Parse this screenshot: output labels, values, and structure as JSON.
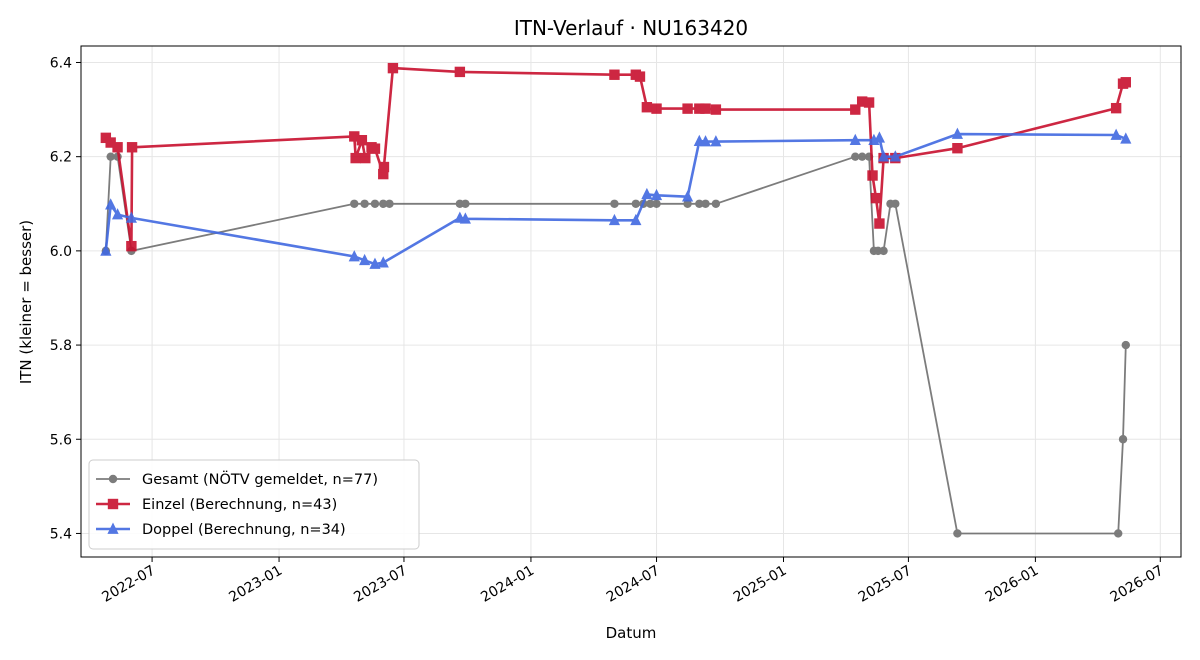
{
  "chart_data": {
    "type": "line",
    "title": "ITN-Verlauf · NU163420",
    "xlabel": "Datum",
    "ylabel": "ITN  (kleiner = besser)",
    "xlim": [
      "2022-03-20",
      "2026-07-31"
    ],
    "ylim": [
      5.35,
      6.435
    ],
    "grid": true,
    "legend_position": "lower-left",
    "x_ticks": [
      {
        "date": "2022-07-01",
        "label": "2022-07"
      },
      {
        "date": "2023-01-01",
        "label": "2023-01"
      },
      {
        "date": "2023-07-01",
        "label": "2023-07"
      },
      {
        "date": "2024-01-01",
        "label": "2024-01"
      },
      {
        "date": "2024-07-01",
        "label": "2024-07"
      },
      {
        "date": "2025-01-01",
        "label": "2025-01"
      },
      {
        "date": "2025-07-01",
        "label": "2025-07"
      },
      {
        "date": "2026-01-01",
        "label": "2026-01"
      },
      {
        "date": "2026-07-01",
        "label": "2026-07"
      }
    ],
    "y_ticks": [
      {
        "value": 5.4,
        "label": "5.4"
      },
      {
        "value": 5.6,
        "label": "5.6"
      },
      {
        "value": 5.8,
        "label": "5.8"
      },
      {
        "value": 6.0,
        "label": "6.0"
      },
      {
        "value": 6.2,
        "label": "6.2"
      },
      {
        "value": 6.4,
        "label": "6.4"
      }
    ],
    "series": [
      {
        "name": "Gesamt (NÖTV gemeldet, n=77)",
        "color": "#666666",
        "marker": "circle",
        "points": [
          [
            "2022-04-25",
            6.0
          ],
          [
            "2022-05-02",
            6.2
          ],
          [
            "2022-05-12",
            6.2
          ],
          [
            "2022-06-01",
            6.0
          ],
          [
            "2023-04-20",
            6.1
          ],
          [
            "2023-05-05",
            6.1
          ],
          [
            "2023-05-20",
            6.1
          ],
          [
            "2023-06-01",
            6.1
          ],
          [
            "2023-06-10",
            6.1
          ],
          [
            "2023-09-20",
            6.1
          ],
          [
            "2023-09-28",
            6.1
          ],
          [
            "2024-05-01",
            6.1
          ],
          [
            "2024-06-01",
            6.1
          ],
          [
            "2024-06-12",
            6.1
          ],
          [
            "2024-06-22",
            6.1
          ],
          [
            "2024-07-01",
            6.1
          ],
          [
            "2024-08-15",
            6.1
          ],
          [
            "2024-09-01",
            6.1
          ],
          [
            "2024-09-10",
            6.1
          ],
          [
            "2024-09-25",
            6.1
          ],
          [
            "2025-04-15",
            6.2
          ],
          [
            "2025-04-25",
            6.2
          ],
          [
            "2025-05-05",
            6.2
          ],
          [
            "2025-05-12",
            6.0
          ],
          [
            "2025-05-18",
            6.0
          ],
          [
            "2025-05-26",
            6.0
          ],
          [
            "2025-06-05",
            6.1
          ],
          [
            "2025-06-12",
            6.1
          ],
          [
            "2025-09-10",
            5.4
          ],
          [
            "2026-05-01",
            5.4
          ],
          [
            "2026-05-08",
            5.6
          ],
          [
            "2026-05-12",
            5.8
          ]
        ]
      },
      {
        "name": "Einzel (Berechnung, n=43)",
        "color": "#c8102e",
        "marker": "square",
        "points": [
          [
            "2022-04-25",
            6.24
          ],
          [
            "2022-05-02",
            6.23
          ],
          [
            "2022-05-12",
            6.22
          ],
          [
            "2022-06-01",
            6.01
          ],
          [
            "2022-06-02",
            6.22
          ],
          [
            "2023-04-20",
            6.243
          ],
          [
            "2023-04-22",
            6.197
          ],
          [
            "2023-05-01",
            6.235
          ],
          [
            "2023-05-06",
            6.197
          ],
          [
            "2023-05-15",
            6.22
          ],
          [
            "2023-05-20",
            6.217
          ],
          [
            "2023-06-01",
            6.163
          ],
          [
            "2023-06-02",
            6.178
          ],
          [
            "2023-06-15",
            6.388
          ],
          [
            "2023-09-20",
            6.38
          ],
          [
            "2024-05-01",
            6.374
          ],
          [
            "2024-06-01",
            6.374
          ],
          [
            "2024-06-07",
            6.37
          ],
          [
            "2024-06-17",
            6.305
          ],
          [
            "2024-07-01",
            6.302
          ],
          [
            "2024-08-15",
            6.302
          ],
          [
            "2024-09-01",
            6.302
          ],
          [
            "2024-09-10",
            6.302
          ],
          [
            "2024-09-25",
            6.3
          ],
          [
            "2025-04-15",
            6.3
          ],
          [
            "2025-04-25",
            6.317
          ],
          [
            "2025-05-05",
            6.315
          ],
          [
            "2025-05-10",
            6.16
          ],
          [
            "2025-05-15",
            6.112
          ],
          [
            "2025-05-20",
            6.058
          ],
          [
            "2025-05-26",
            6.197
          ],
          [
            "2025-06-12",
            6.197
          ],
          [
            "2025-09-10",
            6.218
          ],
          [
            "2026-04-28",
            6.303
          ],
          [
            "2026-05-08",
            6.355
          ],
          [
            "2026-05-12",
            6.358
          ]
        ]
      },
      {
        "name": "Doppel (Berechnung, n=34)",
        "color": "#4169e1",
        "marker": "triangle",
        "points": [
          [
            "2022-04-25",
            6.0
          ],
          [
            "2022-05-02",
            6.098
          ],
          [
            "2022-05-12",
            6.077
          ],
          [
            "2022-06-01",
            6.07
          ],
          [
            "2023-04-20",
            5.988
          ],
          [
            "2023-05-05",
            5.98
          ],
          [
            "2023-05-20",
            5.972
          ],
          [
            "2023-06-01",
            5.975
          ],
          [
            "2023-09-20",
            6.07
          ],
          [
            "2023-09-28",
            6.068
          ],
          [
            "2024-05-01",
            6.065
          ],
          [
            "2024-06-01",
            6.065
          ],
          [
            "2024-06-17",
            6.12
          ],
          [
            "2024-07-01",
            6.118
          ],
          [
            "2024-08-15",
            6.115
          ],
          [
            "2024-09-01",
            6.233
          ],
          [
            "2024-09-10",
            6.232
          ],
          [
            "2024-09-25",
            6.232
          ],
          [
            "2025-04-15",
            6.235
          ],
          [
            "2025-05-12",
            6.235
          ],
          [
            "2025-05-20",
            6.24
          ],
          [
            "2025-05-26",
            6.2
          ],
          [
            "2025-06-12",
            6.2
          ],
          [
            "2025-09-10",
            6.248
          ],
          [
            "2026-04-28",
            6.246
          ],
          [
            "2026-05-12",
            6.238
          ]
        ]
      }
    ]
  }
}
